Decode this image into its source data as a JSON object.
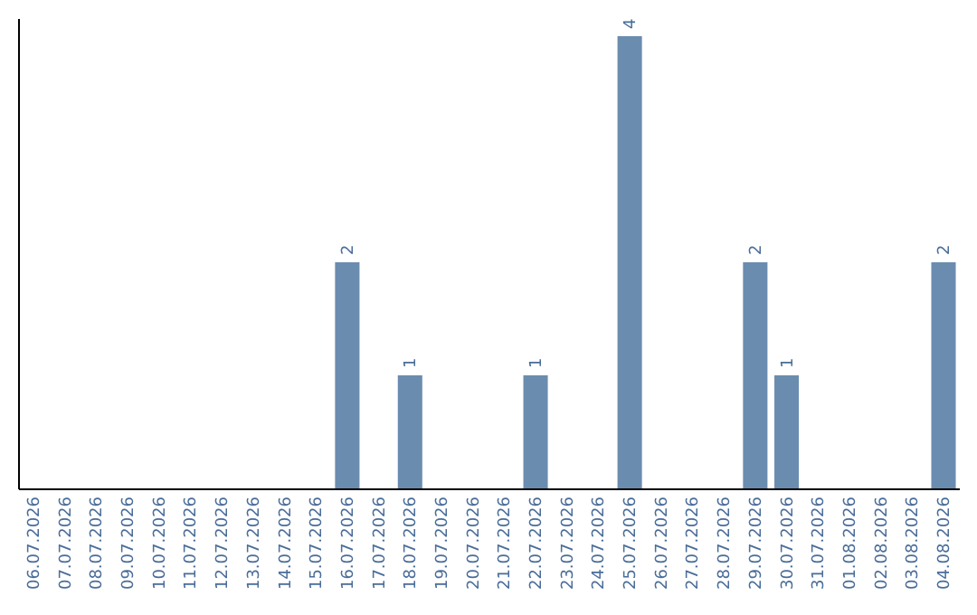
{
  "chart_data": {
    "type": "bar",
    "categories": [
      "06.07.2026",
      "07.07.2026",
      "08.07.2026",
      "09.07.2026",
      "10.07.2026",
      "11.07.2026",
      "12.07.2026",
      "13.07.2026",
      "14.07.2026",
      "15.07.2026",
      "16.07.2026",
      "17.07.2026",
      "18.07.2026",
      "19.07.2026",
      "20.07.2026",
      "21.07.2026",
      "22.07.2026",
      "23.07.2026",
      "24.07.2026",
      "25.07.2026",
      "26.07.2026",
      "27.07.2026",
      "28.07.2026",
      "29.07.2026",
      "30.07.2026",
      "31.07.2026",
      "01.08.2026",
      "02.08.2026",
      "03.08.2026",
      "04.08.2026"
    ],
    "values": [
      0,
      0,
      0,
      0,
      0,
      0,
      0,
      0,
      0,
      0,
      2,
      0,
      1,
      0,
      0,
      0,
      1,
      0,
      0,
      4,
      0,
      0,
      0,
      2,
      1,
      0,
      0,
      0,
      0,
      2
    ],
    "value_labels": [
      null,
      null,
      null,
      null,
      null,
      null,
      null,
      null,
      null,
      null,
      "2",
      null,
      "1",
      null,
      null,
      null,
      "1",
      null,
      null,
      "4",
      null,
      null,
      null,
      "2",
      "1",
      null,
      null,
      null,
      null,
      "2"
    ],
    "color": "#6a8caf",
    "tick_labels": "x"
  }
}
